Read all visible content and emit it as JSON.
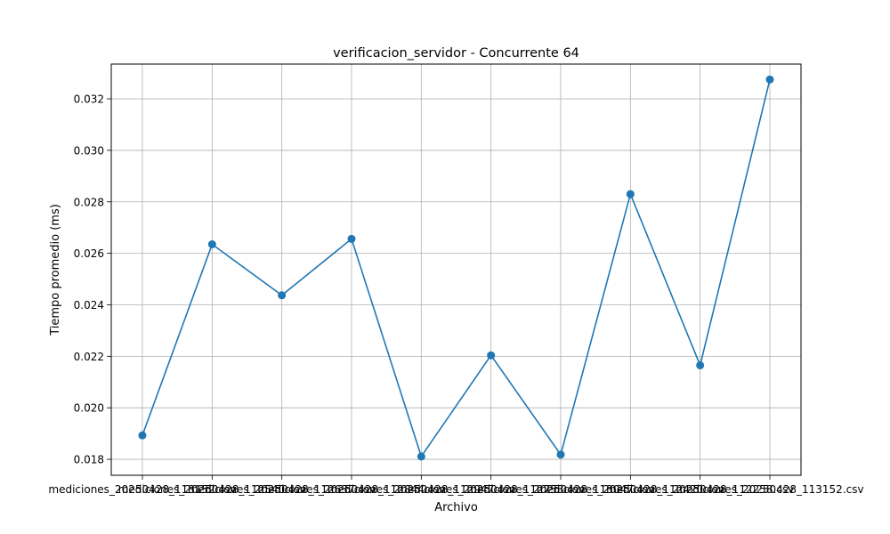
{
  "chart_data": {
    "type": "line",
    "title": "verificacion_servidor - Concurrente 64",
    "xlabel": "Archivo",
    "ylabel": "Tiempo promedio (ms)",
    "categories": [
      "mediciones_20250428_113152.csv",
      "mediciones_20250428_112540.csv",
      "mediciones_20250428_112637.csv",
      "mediciones_20250428_112844.csv",
      "mediciones_20250428_112947.csv",
      "mediciones_20250428_112753.csv",
      "mediciones_20250428_113047.csv",
      "mediciones_20250428_112420.csv",
      "mediciones_20250428_112258.csv",
      "mediciones_20250428_113152.csv"
    ],
    "series": [
      {
        "values": [
          0.01893,
          0.02635,
          0.02437,
          0.02656,
          0.01811,
          0.02204,
          0.01818,
          0.0283,
          0.02165,
          0.03275
        ]
      }
    ],
    "ylim": [
      0.01738,
      0.03335
    ],
    "yticks": [
      0.018,
      0.02,
      0.022,
      0.024,
      0.026,
      0.028,
      0.03,
      0.032
    ],
    "ytick_labels": [
      "0.018",
      "0.020",
      "0.022",
      "0.024",
      "0.026",
      "0.028",
      "0.030",
      "0.032"
    ],
    "grid": true,
    "color": "#1f77b4"
  }
}
